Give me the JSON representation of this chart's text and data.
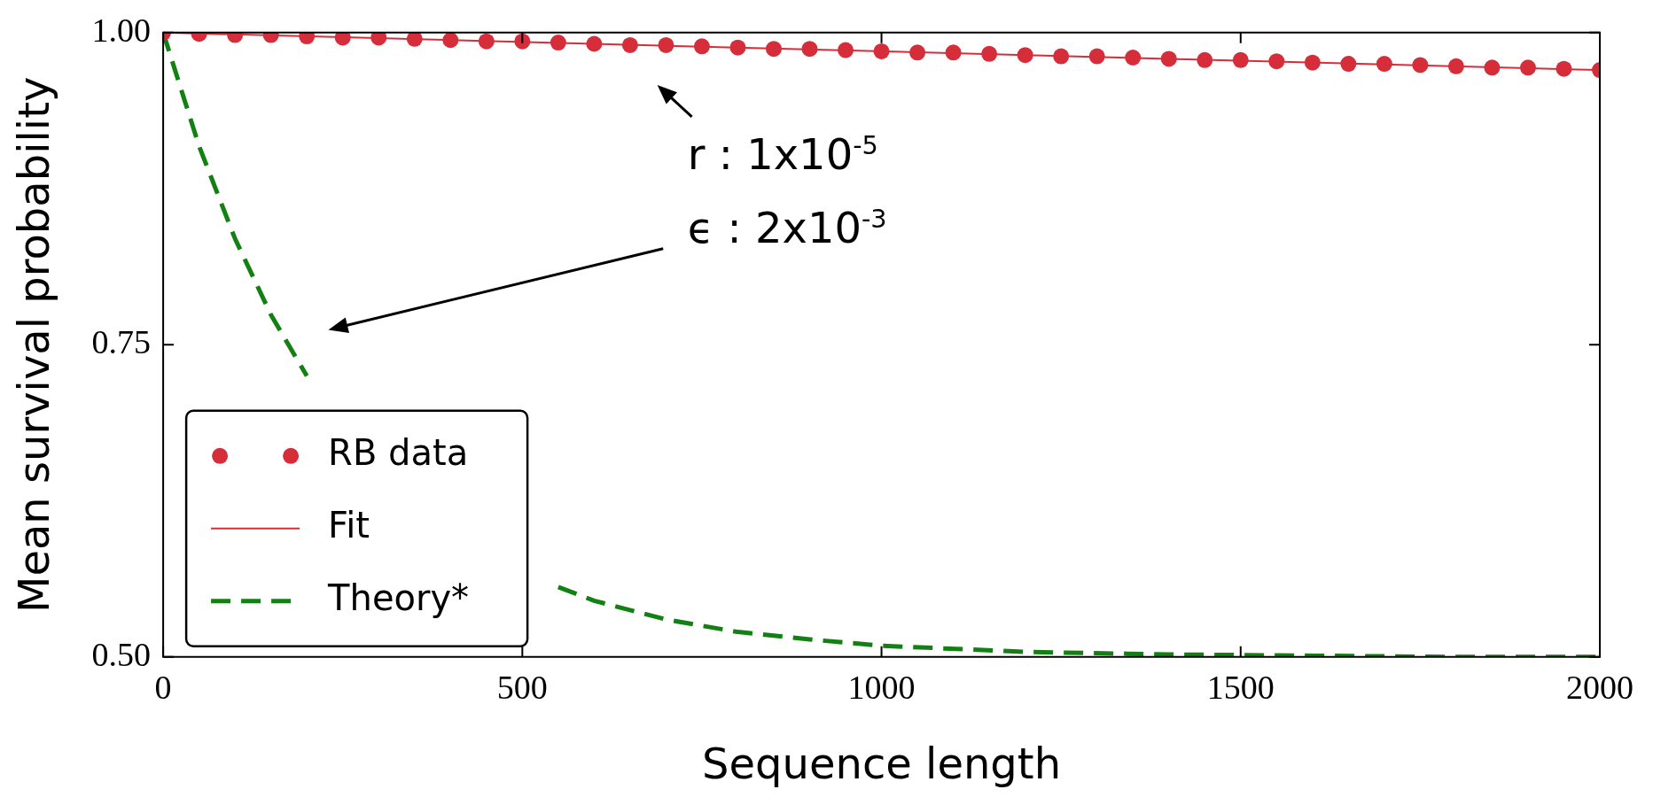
{
  "chart_data": {
    "type": "line",
    "xlabel": "Sequence length",
    "ylabel": "Mean survival probability",
    "xlim": [
      0,
      2000
    ],
    "xticks": [
      0,
      500,
      1000,
      1500,
      2000
    ],
    "ylim": [
      0.5,
      1.0
    ],
    "yticks": [
      {
        "value": 0.5,
        "label": "0.50"
      },
      {
        "value": 0.75,
        "label": "0.75"
      },
      {
        "value": 1.0,
        "label": "1.00"
      }
    ],
    "grid": false,
    "legend": "bottom left",
    "series": [
      {
        "name": "RB data",
        "type": "scatter",
        "marker": "circle",
        "color": "#d62d3a",
        "x": [
          0,
          50,
          100,
          150,
          200,
          250,
          300,
          350,
          400,
          450,
          500,
          550,
          600,
          650,
          700,
          750,
          800,
          850,
          900,
          950,
          1000,
          1050,
          1100,
          1150,
          1200,
          1250,
          1300,
          1350,
          1400,
          1450,
          1500,
          1550,
          1600,
          1650,
          1700,
          1750,
          1800,
          1850,
          1900,
          1950,
          2000
        ],
        "values": [
          1.0,
          0.999,
          0.998,
          0.998,
          0.997,
          0.996,
          0.996,
          0.995,
          0.994,
          0.993,
          0.993,
          0.992,
          0.991,
          0.99,
          0.99,
          0.989,
          0.988,
          0.987,
          0.987,
          0.986,
          0.985,
          0.984,
          0.984,
          0.983,
          0.982,
          0.981,
          0.981,
          0.98,
          0.979,
          0.978,
          0.978,
          0.977,
          0.976,
          0.975,
          0.975,
          0.974,
          0.973,
          0.972,
          0.972,
          0.971,
          0.97
        ]
      },
      {
        "name": "Fit",
        "type": "line",
        "line_style": "solid",
        "color": "#d62d3a",
        "x": [
          0,
          2000
        ],
        "values": [
          1.0,
          0.97
        ]
      },
      {
        "name": "Theory*",
        "type": "line",
        "line_style": "dashed",
        "color": "#138013",
        "x": [
          0,
          50,
          100,
          150,
          200,
          250,
          300,
          350,
          400,
          450,
          500,
          550,
          600,
          700,
          800,
          900,
          1000,
          1200,
          1400,
          1600,
          1800,
          2000
        ],
        "values": [
          1.0,
          0.909,
          0.835,
          0.774,
          0.725,
          null,
          null,
          null,
          null,
          null,
          null,
          0.556,
          0.545,
          0.53,
          0.52,
          0.514,
          0.509,
          0.504,
          0.502,
          0.501,
          0.5,
          0.5
        ]
      }
    ],
    "annotations": [
      "r : 1x10$^{-5}$",
      "ϵ : 2x10$^{-3}$"
    ]
  }
}
